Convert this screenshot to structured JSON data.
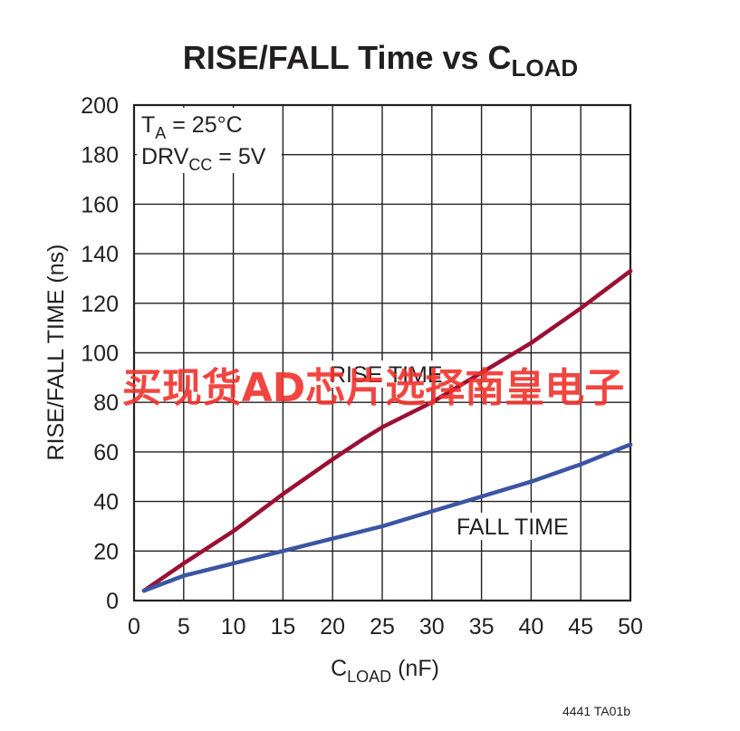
{
  "chart_data": {
    "type": "line",
    "title": "RISE/FALL Time vs C",
    "title_subscript": "LOAD",
    "xlabel": "C",
    "xlabel_subscript": "LOAD",
    "xlabel_suffix": " (nF)",
    "ylabel": "RISE/FALL TIME (ns)",
    "xlim": [
      0,
      50
    ],
    "ylim": [
      0,
      200
    ],
    "x_ticks": [
      "0",
      "5",
      "10",
      "15",
      "20",
      "25",
      "30",
      "35",
      "40",
      "45",
      "50"
    ],
    "y_ticks": [
      "0",
      "20",
      "40",
      "60",
      "80",
      "100",
      "120",
      "140",
      "160",
      "180",
      "200"
    ],
    "grid": true,
    "conditions": [
      {
        "main": "T",
        "sub": "A",
        "rest": " = 25°C"
      },
      {
        "main": "DRV",
        "sub": "CC",
        "rest": " = 5V"
      }
    ],
    "series": [
      {
        "name": "RISE TIME",
        "color": "#9b1034",
        "x": [
          1,
          5,
          10,
          15,
          20,
          23,
          25,
          30,
          35,
          40,
          45,
          50
        ],
        "y": [
          4,
          15,
          28,
          43,
          57,
          65,
          70,
          80,
          92,
          104,
          118,
          133
        ]
      },
      {
        "name": "FALL TIME",
        "color": "#3a55a4",
        "x": [
          1,
          5,
          10,
          15,
          20,
          25,
          30,
          35,
          40,
          45,
          50
        ],
        "y": [
          4,
          10,
          15,
          20,
          25,
          30,
          36,
          42,
          48,
          55,
          63
        ]
      }
    ],
    "footnote": "4441 TA01b"
  },
  "watermark": "买现货AD芯片选择南皇电子"
}
